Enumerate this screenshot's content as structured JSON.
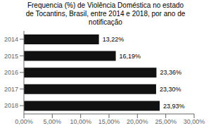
{
  "chart_data": {
    "type": "bar",
    "title": "Frequencia (%) de Violência Doméstica no estado\nde Tocantins, Brasil, entre 2014 e 2018, por ano de\nnotificação",
    "orientation": "horizontal",
    "categories": [
      "2014",
      "2015",
      "2016",
      "2017",
      "2018"
    ],
    "values": [
      13.22,
      16.19,
      23.36,
      23.3,
      23.93
    ],
    "value_labels": [
      "13,22%",
      "16,19%",
      "23,36%",
      "23,30%",
      "23,93%"
    ],
    "data_labels": true,
    "color": "#111111",
    "xlim": [
      0,
      30
    ],
    "xticks": [
      {
        "value": 0,
        "label": "0,00%"
      },
      {
        "value": 5,
        "label": "5,00%"
      },
      {
        "value": 10,
        "label": "10,00%"
      },
      {
        "value": 15,
        "label": "15,00%"
      },
      {
        "value": 20,
        "label": "20,00%"
      },
      {
        "value": 25,
        "label": "25,00%"
      },
      {
        "value": 30,
        "label": "30,00%"
      }
    ],
    "grid": false
  }
}
